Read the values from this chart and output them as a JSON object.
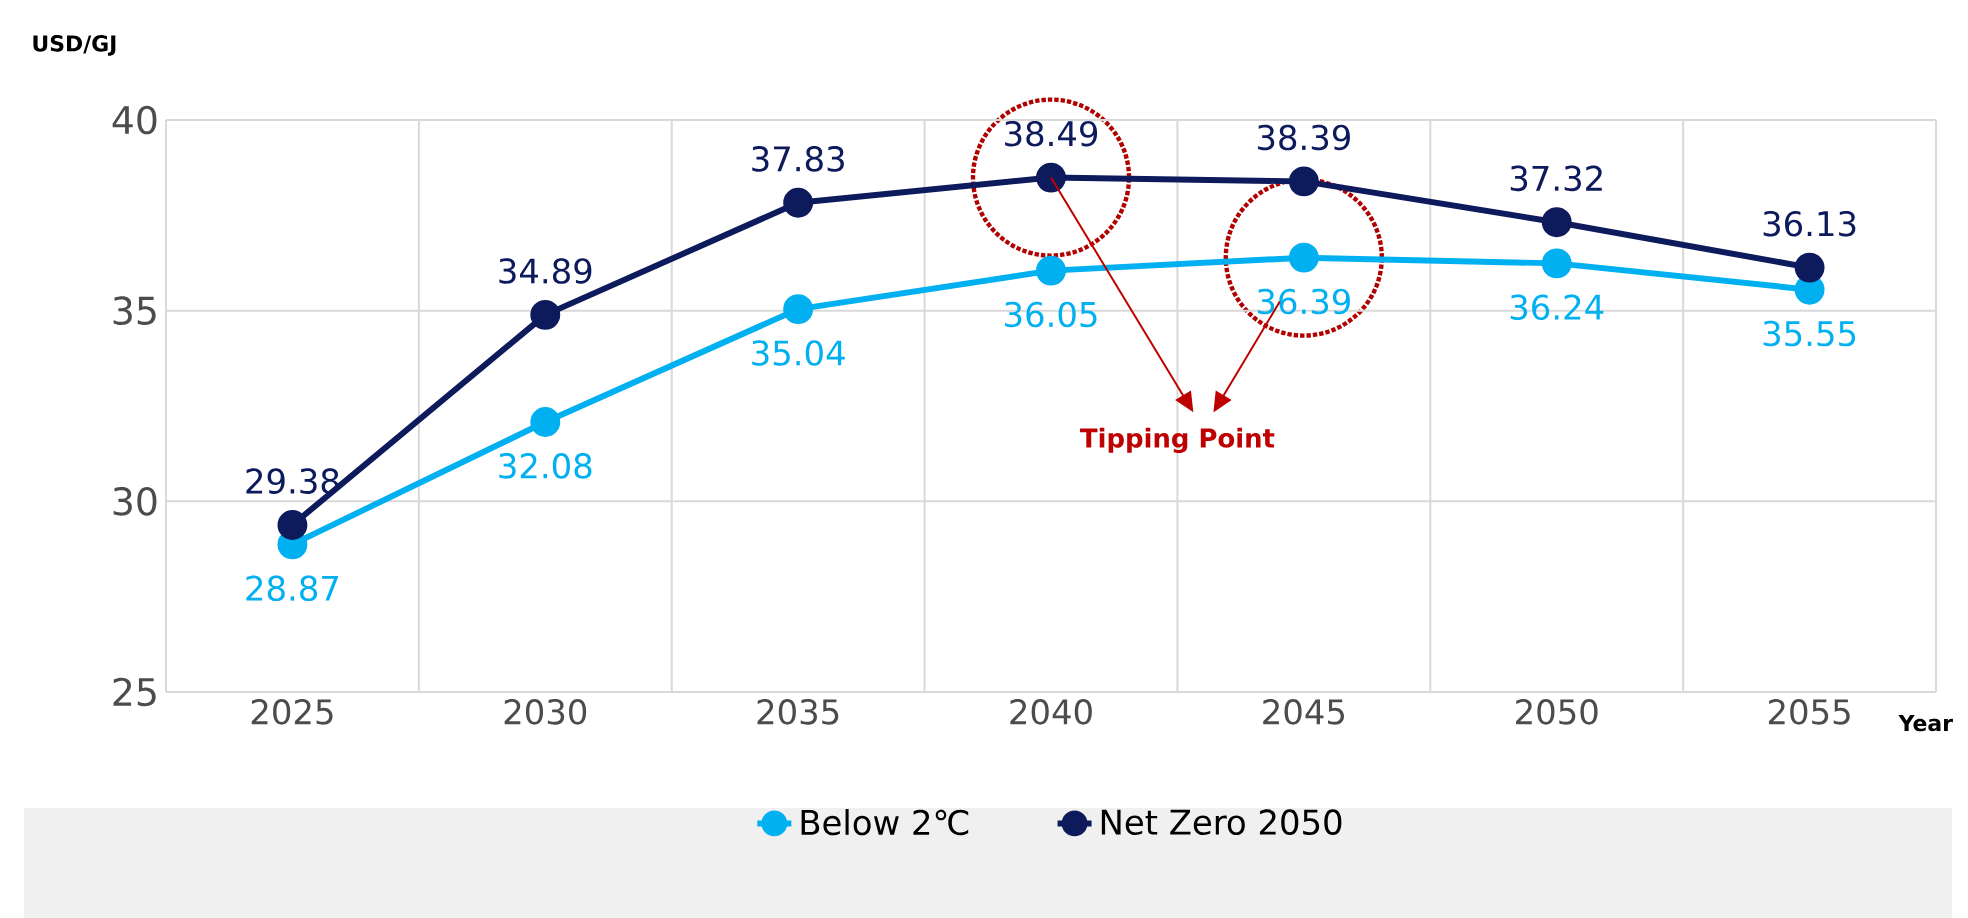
{
  "chart_data": {
    "type": "line",
    "ylabel": "USD/GJ",
    "xlabel": "Year",
    "categories": [
      "2025",
      "2030",
      "2035",
      "2040",
      "2045",
      "2050",
      "2055"
    ],
    "series": [
      {
        "name": "Below 2℃",
        "color": "#00b0f0",
        "values": [
          28.87,
          32.08,
          35.04,
          36.05,
          36.39,
          36.24,
          35.55
        ]
      },
      {
        "name": "Net Zero 2050",
        "color": "#0d1a5c",
        "values": [
          29.38,
          34.89,
          37.83,
          38.49,
          38.39,
          37.32,
          36.13
        ]
      }
    ],
    "ylim": [
      25,
      40
    ],
    "yticks": [
      25,
      30,
      35,
      40
    ],
    "grid": true,
    "legend": "bottom",
    "marker": "circle",
    "line_style": "solid",
    "data_labels": true,
    "annotations": [
      "Tipping Point"
    ]
  }
}
